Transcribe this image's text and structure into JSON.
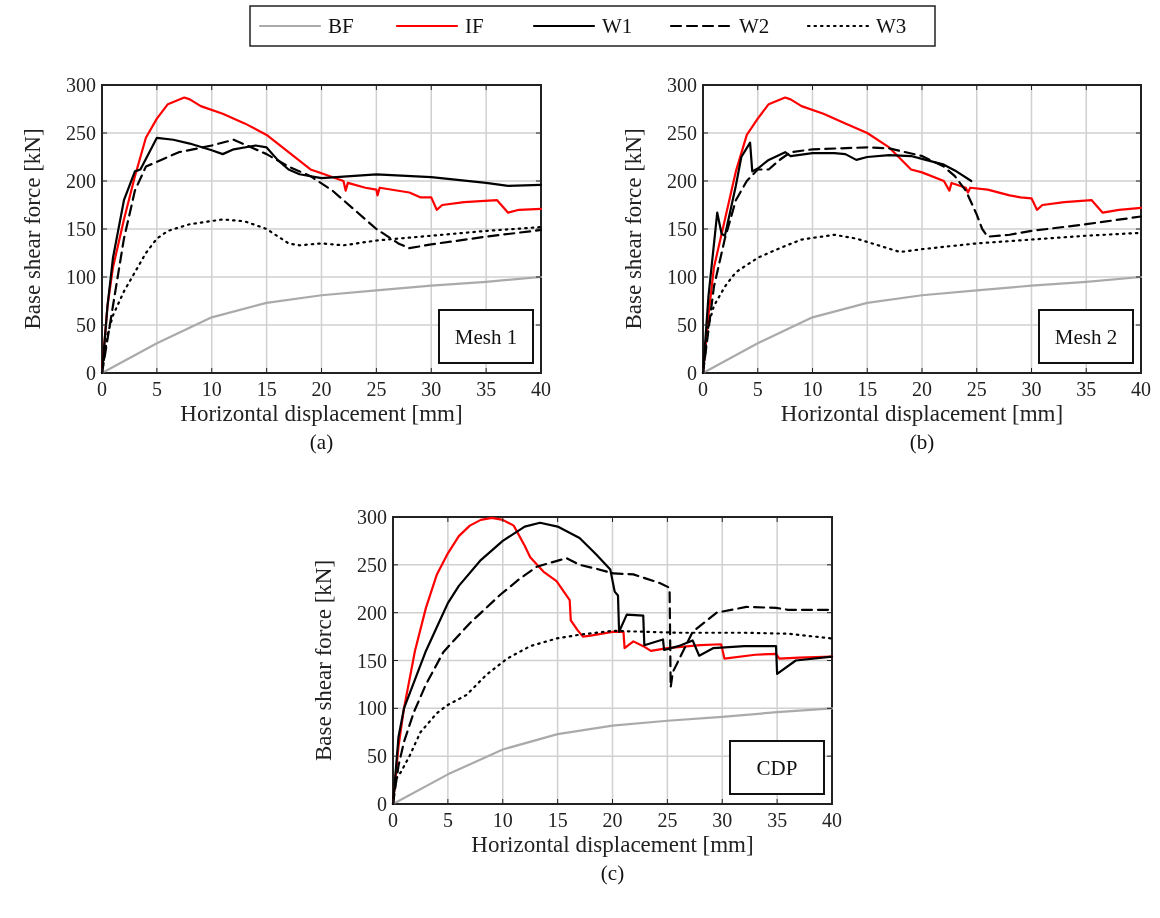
{
  "chart_data": [
    {
      "type": "line",
      "xlabel": "Horizontal displacement [mm]",
      "ylabel": "Base shear force [kN]",
      "annotations": [
        "Mesh 1",
        "(a)"
      ],
      "xlim": [
        0,
        40
      ],
      "ylim": [
        0,
        300
      ],
      "xticks": [
        0,
        5,
        10,
        15,
        20,
        25,
        30,
        35,
        40
      ],
      "yticks": [
        0,
        50,
        100,
        150,
        200,
        250,
        300
      ],
      "grid": true,
      "legend": "top",
      "marker": "none",
      "series": [
        {
          "name": "BF",
          "color": "#aaaaaa",
          "line_style": "solid",
          "x": [
            0,
            5,
            10,
            15,
            20,
            25,
            30,
            35,
            40
          ],
          "values": [
            0,
            31,
            58,
            73,
            81,
            86,
            91,
            95,
            100
          ]
        },
        {
          "name": "IF",
          "color": "#ff0000",
          "line_style": "solid",
          "x": [
            0,
            0.5,
            1,
            2,
            3,
            4,
            5,
            6,
            7.5,
            8,
            9,
            11,
            13,
            15,
            17,
            19,
            20,
            22,
            22.2,
            22.4,
            24,
            25,
            25.1,
            25.3,
            28,
            29,
            30,
            30.5,
            31,
            33,
            36,
            37,
            38,
            40
          ],
          "values": [
            0,
            70,
            110,
            160,
            205,
            245,
            265,
            280,
            287,
            285,
            278,
            270,
            260,
            248,
            230,
            212,
            208,
            200,
            190,
            198,
            193,
            191,
            185,
            193,
            188,
            183,
            183,
            170,
            175,
            178,
            180,
            167,
            170,
            171
          ]
        },
        {
          "name": "W1",
          "color": "#000000",
          "line_style": "solid",
          "x": [
            0,
            0.5,
            1,
            2,
            3,
            3.5,
            5,
            6.5,
            8,
            10,
            11,
            12,
            14,
            15,
            16,
            17,
            18,
            20,
            25,
            30,
            35,
            37,
            40
          ],
          "values": [
            0,
            70,
            120,
            180,
            210,
            212,
            245,
            243,
            239,
            232,
            228,
            233,
            237,
            235,
            222,
            212,
            207,
            203,
            207,
            204,
            198,
            195,
            196
          ]
        },
        {
          "name": "W2",
          "color": "#000000",
          "line_style": "dashed",
          "x": [
            0,
            1,
            2,
            3,
            4,
            5,
            7,
            10,
            12,
            13,
            15,
            17,
            19,
            21,
            23,
            25,
            27,
            28,
            30,
            35,
            40
          ],
          "values": [
            0,
            70,
            140,
            190,
            215,
            220,
            230,
            237,
            243,
            238,
            228,
            215,
            205,
            190,
            170,
            150,
            135,
            130,
            134,
            142,
            149
          ]
        },
        {
          "name": "W3",
          "color": "#000000",
          "line_style": "dotted",
          "x": [
            0,
            0.5,
            1,
            2,
            3,
            4,
            5,
            6,
            8,
            11,
            13,
            15,
            17,
            18,
            20,
            22,
            25,
            30,
            35,
            40
          ],
          "values": [
            0,
            40,
            60,
            85,
            105,
            125,
            140,
            148,
            155,
            160,
            158,
            150,
            135,
            133,
            135,
            133,
            138,
            143,
            148,
            152
          ]
        }
      ]
    },
    {
      "type": "line",
      "xlabel": "Horizontal displacement [mm]",
      "ylabel": "Base shear force [kN]",
      "annotations": [
        "Mesh 2",
        "(b)"
      ],
      "xlim": [
        0,
        40
      ],
      "ylim": [
        0,
        300
      ],
      "xticks": [
        0,
        5,
        10,
        15,
        20,
        25,
        30,
        35,
        40
      ],
      "yticks": [
        0,
        50,
        100,
        150,
        200,
        250,
        300
      ],
      "grid": true,
      "marker": "none",
      "series": [
        {
          "color": "#aaaaaa",
          "line_style": "solid",
          "x": [
            0,
            5,
            10,
            15,
            20,
            25,
            30,
            35,
            40
          ],
          "values": [
            0,
            31,
            58,
            73,
            81,
            86,
            91,
            95,
            100
          ]
        },
        {
          "color": "#ff0000",
          "line_style": "solid",
          "x": [
            0,
            0.5,
            1,
            2,
            3,
            4,
            5,
            6,
            7.5,
            8,
            9,
            11,
            13,
            15,
            17,
            19,
            20,
            22,
            22.5,
            22.7,
            24,
            24.2,
            24.4,
            26,
            28,
            29,
            30,
            30.5,
            31,
            33,
            35.5,
            36.5,
            38,
            40
          ],
          "values": [
            0,
            60,
            110,
            160,
            210,
            248,
            265,
            280,
            287,
            285,
            278,
            270,
            260,
            250,
            235,
            212,
            209,
            200,
            190,
            198,
            193,
            188,
            193,
            191,
            185,
            183,
            182,
            170,
            175,
            178,
            180,
            167,
            170,
            172
          ]
        },
        {
          "color": "#000000",
          "line_style": "solid",
          "x": [
            0,
            0.5,
            1.3,
            1.7,
            2,
            3,
            3.5,
            4.3,
            4.5,
            5,
            6,
            7.5,
            8,
            10,
            12,
            13,
            14,
            15,
            17,
            19,
            20,
            22,
            23,
            24.5
          ],
          "values": [
            0,
            80,
            167,
            145,
            143,
            195,
            225,
            240,
            210,
            213,
            222,
            230,
            226,
            229,
            229,
            228,
            222,
            225,
            227,
            226,
            223,
            217,
            211,
            200
          ]
        },
        {
          "color": "#000000",
          "line_style": "dashed",
          "x": [
            0,
            1,
            2,
            3,
            4,
            5,
            6,
            7,
            8,
            10,
            15,
            17,
            20,
            22,
            23,
            24,
            25,
            25.5,
            26,
            28,
            30,
            35,
            40
          ],
          "values": [
            0,
            90,
            140,
            180,
            200,
            212,
            212,
            222,
            230,
            233,
            235,
            234,
            226,
            215,
            205,
            190,
            165,
            150,
            142,
            144,
            148,
            155,
            163
          ]
        },
        {
          "color": "#000000",
          "line_style": "dotted",
          "x": [
            0,
            0.5,
            1,
            2,
            3,
            5,
            7,
            9,
            12,
            14,
            16,
            18,
            20,
            25,
            30,
            35,
            40
          ],
          "values": [
            0,
            50,
            70,
            90,
            105,
            120,
            130,
            139,
            144,
            140,
            133,
            126,
            129,
            135,
            139,
            143,
            146
          ]
        }
      ]
    },
    {
      "type": "line",
      "xlabel": "Horizontal displacement [mm]",
      "ylabel": "Base shear force [kN]",
      "annotations": [
        "CDP",
        "(c)"
      ],
      "xlim": [
        0,
        40
      ],
      "ylim": [
        0,
        300
      ],
      "xticks": [
        0,
        5,
        10,
        15,
        20,
        25,
        30,
        35,
        40
      ],
      "yticks": [
        0,
        50,
        100,
        150,
        200,
        250,
        300
      ],
      "grid": true,
      "marker": "none",
      "series": [
        {
          "color": "#aaaaaa",
          "line_style": "solid",
          "x": [
            0,
            5,
            10,
            15,
            20,
            25,
            30,
            35,
            40
          ],
          "values": [
            0,
            31,
            57,
            73,
            82,
            87,
            91,
            96,
            100
          ]
        },
        {
          "color": "#ff0000",
          "line_style": "solid",
          "x": [
            0,
            0.5,
            1,
            2,
            3,
            4,
            5,
            6,
            7,
            8,
            9,
            10,
            11,
            12,
            12.5,
            13.7,
            14.9,
            16.1,
            16.2,
            16.8,
            17.3,
            18,
            20,
            21,
            21.1,
            21.9,
            22.8,
            23.5,
            25,
            28,
            29.9,
            30.2,
            33,
            34.9,
            35.2,
            37,
            40
          ],
          "values": [
            0,
            60,
            100,
            160,
            205,
            240,
            262,
            280,
            291,
            297,
            299,
            297,
            291,
            270,
            258,
            243,
            233,
            213,
            192,
            182,
            175,
            176,
            180,
            180,
            163,
            170,
            165,
            160,
            163,
            166,
            167,
            152,
            156,
            157,
            152,
            153,
            154
          ]
        },
        {
          "color": "#000000",
          "line_style": "solid",
          "x": [
            0,
            0.5,
            1,
            2,
            3,
            4,
            5,
            6,
            8,
            10,
            12,
            13.4,
            15,
            17,
            18.5,
            19.8,
            20.2,
            20.5,
            20.6,
            21.3,
            22.8,
            22.9,
            24.6,
            24.7,
            26,
            27.3,
            27.9,
            29.2,
            32,
            34.9,
            35,
            36.7,
            40
          ],
          "values": [
            0,
            70,
            100,
            130,
            160,
            185,
            210,
            228,
            255,
            275,
            290,
            294,
            290,
            278,
            261,
            245,
            222,
            218,
            180,
            198,
            197,
            166,
            172,
            161,
            165,
            171,
            155,
            163,
            165,
            165,
            136,
            150,
            154
          ]
        },
        {
          "color": "#000000",
          "line_style": "dashed",
          "x": [
            0,
            0.5,
            1,
            1.9,
            3,
            4.6,
            7,
            9.8,
            11.5,
            13.1,
            15.8,
            17,
            18.5,
            20.1,
            21.9,
            24.3,
            25.2,
            25.3,
            25.5,
            27.3,
            29.5,
            32.2,
            34.9,
            36,
            40
          ],
          "values": [
            0,
            40,
            65,
            96,
            125,
            159,
            189,
            219,
            235,
            248,
            257,
            250,
            246,
            241,
            240,
            231,
            226,
            122,
            138,
            180,
            200,
            206,
            205,
            203,
            203
          ]
        },
        {
          "color": "#000000",
          "line_style": "dotted",
          "x": [
            0,
            0.2,
            0.7,
            1.5,
            2.5,
            4,
            4.9,
            6.7,
            8.5,
            10.4,
            12.5,
            14.9,
            17,
            20,
            26,
            32,
            36,
            40
          ],
          "values": [
            0,
            25,
            33,
            50,
            75,
            95,
            103,
            114,
            135,
            152,
            165,
            173,
            177,
            181,
            179,
            179,
            178,
            173
          ]
        }
      ]
    }
  ]
}
